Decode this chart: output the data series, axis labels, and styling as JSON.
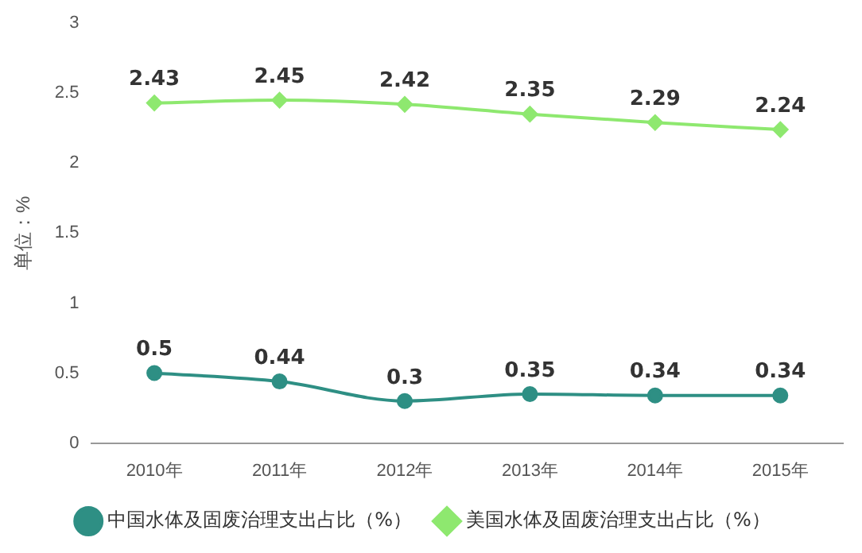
{
  "chart_data": {
    "type": "line",
    "ylabel": "单位：%",
    "categories": [
      "2010年",
      "2011年",
      "2012年",
      "2013年",
      "2014年",
      "2015年"
    ],
    "series": [
      {
        "name": "中国水体及固废治理支出占比（%）",
        "color": "#2e8f84",
        "values": [
          0.5,
          0.44,
          0.3,
          0.35,
          0.34,
          0.34
        ],
        "marker": "circle"
      },
      {
        "name": "美国水体及固废治理支出占比（%）",
        "color": "#8ee86f",
        "values": [
          2.43,
          2.45,
          2.42,
          2.35,
          2.29,
          2.24
        ],
        "marker": "diamond"
      }
    ],
    "ylim": [
      0,
      3
    ],
    "yticks": [
      0,
      0.5,
      1,
      1.5,
      2,
      2.5,
      3
    ],
    "grid": false,
    "legend": "bottom",
    "data_labels": true,
    "line_style": "solid"
  }
}
